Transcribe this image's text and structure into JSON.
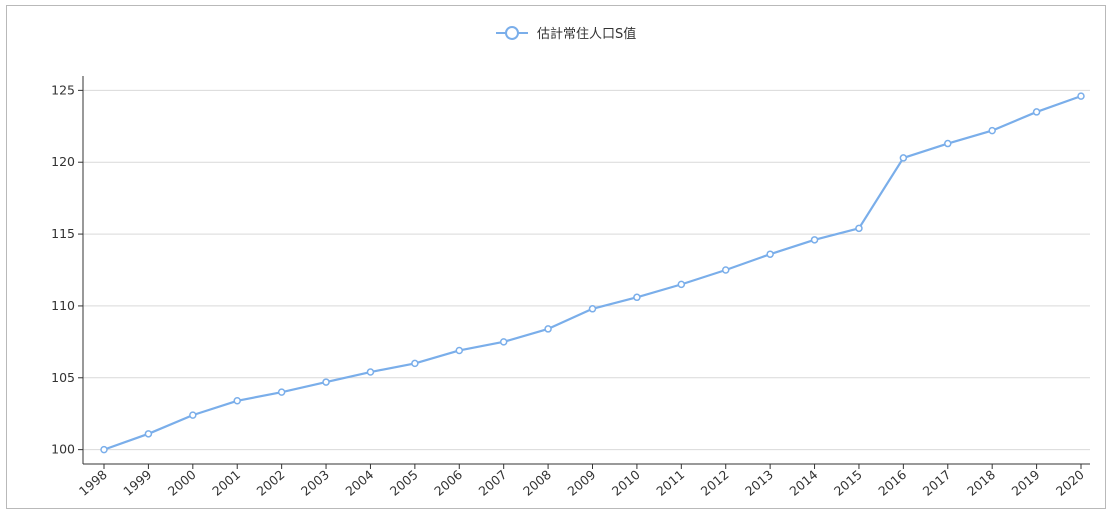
{
  "chart_data": {
    "type": "line",
    "legend": {
      "label": "估計常住人口S值",
      "position": "top-center"
    },
    "x": [
      "1998",
      "1999",
      "2000",
      "2001",
      "2002",
      "2003",
      "2004",
      "2005",
      "2006",
      "2007",
      "2008",
      "2009",
      "2010",
      "2011",
      "2012",
      "2013",
      "2014",
      "2015",
      "2016",
      "2017",
      "2018",
      "2019",
      "2020"
    ],
    "series": [
      {
        "name": "估計常住人口S值",
        "color": "#7aaeea",
        "values": [
          100.0,
          101.1,
          102.4,
          103.4,
          104.0,
          104.7,
          105.4,
          106.0,
          106.9,
          107.5,
          108.4,
          109.8,
          110.6,
          111.5,
          112.5,
          113.6,
          114.6,
          115.4,
          120.3,
          121.3,
          122.2,
          123.5,
          124.6
        ]
      }
    ],
    "ylim": [
      99,
      126
    ],
    "yticks": [
      100,
      105,
      110,
      115,
      120,
      125
    ],
    "grid": {
      "horizontal": true,
      "vertical": false
    },
    "xlabel": "",
    "ylabel": "",
    "title": ""
  }
}
